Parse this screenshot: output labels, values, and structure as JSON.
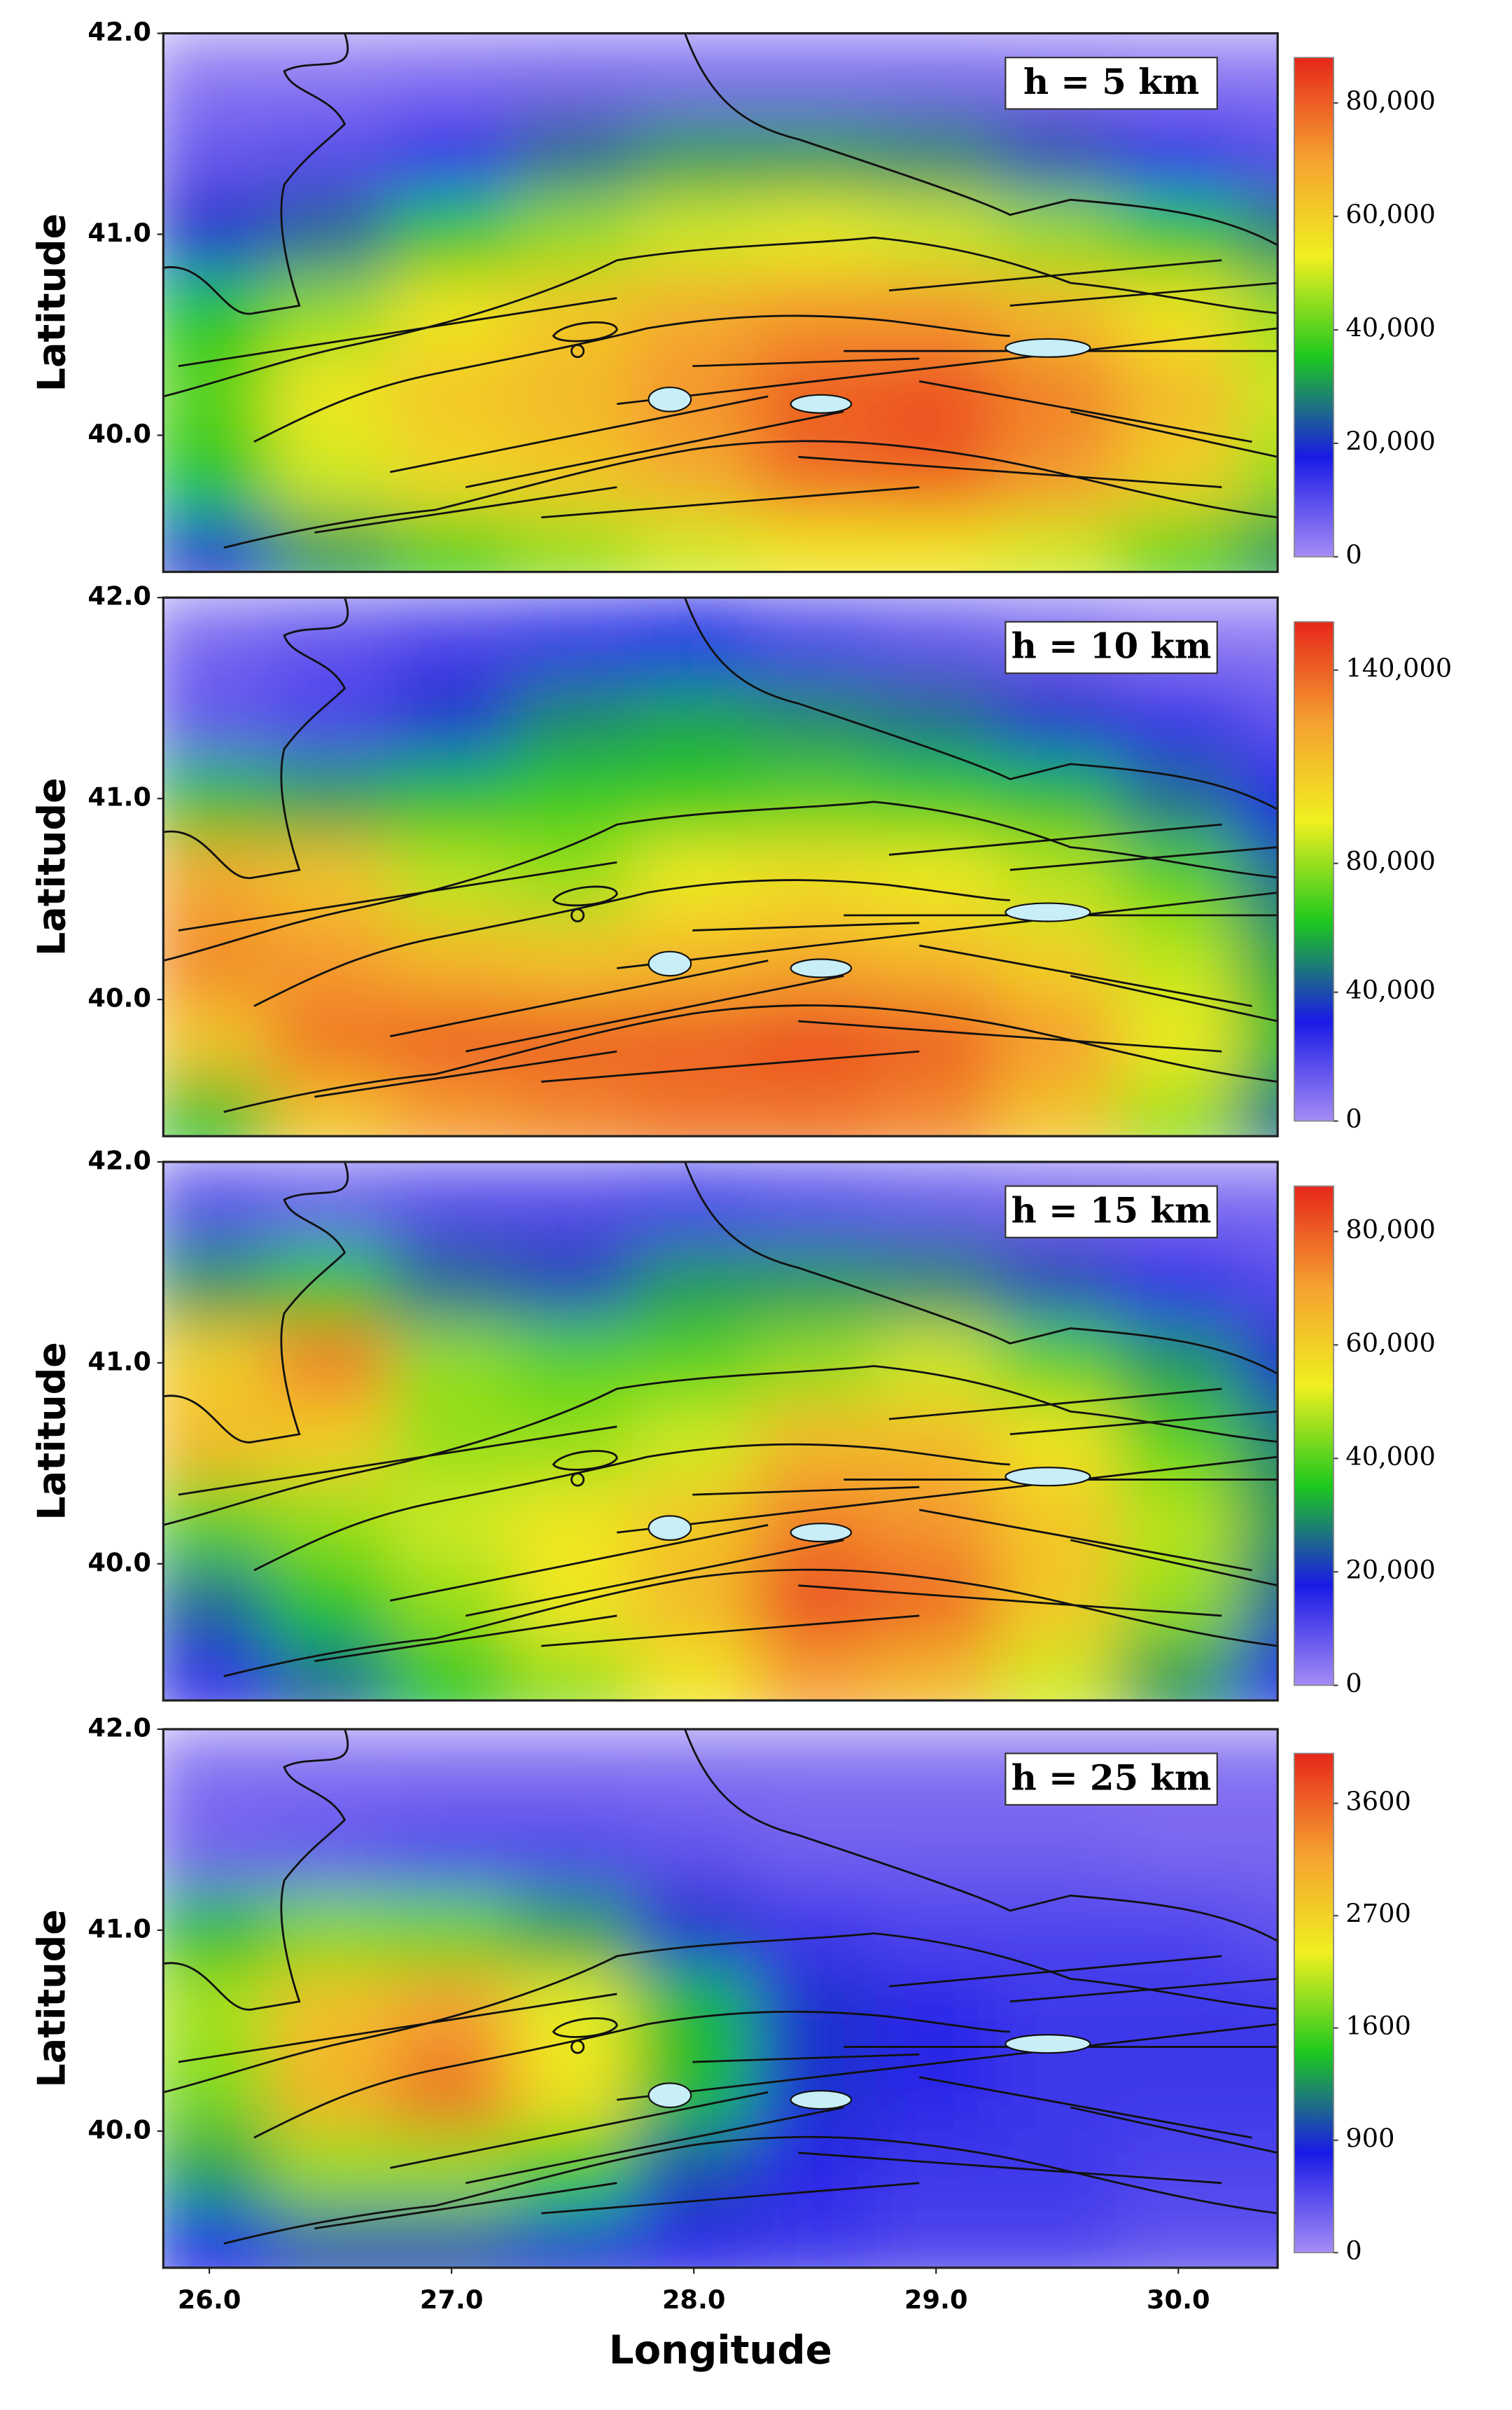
{
  "chart_data": [
    {
      "type": "heatmap",
      "title": "h = 5 km",
      "ylabel": "Latitude",
      "x": [
        26.0,
        26.5,
        27.0,
        27.5,
        28.0,
        28.5,
        29.0,
        29.5,
        30.0,
        30.5
      ],
      "y": [
        41.8,
        41.4,
        41.0,
        40.6,
        40.2,
        39.8,
        39.4
      ],
      "values": [
        [
          3000,
          3000,
          4000,
          5000,
          5000,
          5000,
          5000,
          4000,
          3000,
          3000
        ],
        [
          8000,
          10000,
          15000,
          25000,
          30000,
          30000,
          28000,
          22000,
          15000,
          10000
        ],
        [
          20000,
          25000,
          35000,
          45000,
          50000,
          52000,
          50000,
          45000,
          35000,
          28000
        ],
        [
          35000,
          45000,
          55000,
          62000,
          68000,
          72000,
          72000,
          65000,
          55000,
          45000
        ],
        [
          40000,
          55000,
          62000,
          65000,
          72000,
          80000,
          82000,
          75000,
          65000,
          50000
        ],
        [
          35000,
          50000,
          58000,
          62000,
          68000,
          78000,
          80000,
          72000,
          60000,
          45000
        ],
        [
          20000,
          30000,
          38000,
          45000,
          50000,
          55000,
          55000,
          50000,
          40000,
          30000
        ]
      ],
      "xlim": [
        25.81,
        30.41
      ],
      "ylim": [
        39.32,
        42.0
      ],
      "yticks": [
        {
          "value": 40,
          "label": "40.0"
        },
        {
          "value": 41,
          "label": "41.0"
        },
        {
          "value": 42,
          "label": "42.0"
        }
      ],
      "colormap": [
        "#a58cf5",
        "#1a1ae6",
        "#1ec81e",
        "#f0f020",
        "#f5a030",
        "#e6261a"
      ],
      "clim": [
        0,
        88000
      ],
      "colorbar_scale": "linear",
      "cticks": [
        0,
        {
          "value": 20000,
          "label": "20,000"
        },
        {
          "value": 40000,
          "label": "40,000"
        },
        {
          "value": 60000,
          "label": "60,000"
        },
        {
          "value": 80000,
          "label": "80,000"
        }
      ]
    },
    {
      "type": "heatmap",
      "title": "h = 10 km",
      "ylabel": "Latitude",
      "x": [
        26.0,
        26.5,
        27.0,
        27.5,
        28.0,
        28.5,
        29.0,
        29.5,
        30.0,
        30.5
      ],
      "y": [
        41.8,
        41.4,
        41.0,
        40.6,
        40.2,
        39.8,
        39.4
      ],
      "values": [
        [
          10000,
          15000,
          20000,
          25000,
          30000,
          20000,
          15000,
          10000,
          5000,
          5000
        ],
        [
          15000,
          20000,
          35000,
          50000,
          55000,
          50000,
          45000,
          35000,
          25000,
          15000
        ],
        [
          60000,
          55000,
          60000,
          65000,
          65000,
          70000,
          65000,
          60000,
          45000,
          30000
        ],
        [
          120000,
          110000,
          85000,
          80000,
          95000,
          100000,
          95000,
          85000,
          70000,
          45000
        ],
        [
          130000,
          125000,
          115000,
          110000,
          115000,
          120000,
          115000,
          105000,
          85000,
          55000
        ],
        [
          110000,
          135000,
          140000,
          140000,
          140000,
          145000,
          140000,
          125000,
          95000,
          60000
        ],
        [
          60000,
          110000,
          125000,
          130000,
          135000,
          135000,
          130000,
          110000,
          80000,
          45000
        ]
      ],
      "xlim": [
        25.81,
        30.41
      ],
      "ylim": [
        39.32,
        42.0
      ],
      "yticks": [
        {
          "value": 40,
          "label": "40.0"
        },
        {
          "value": 41,
          "label": "41.0"
        },
        {
          "value": 42,
          "label": "42.0"
        }
      ],
      "colormap": [
        "#a58cf5",
        "#1a1ae6",
        "#1ec81e",
        "#f0f020",
        "#f5a030",
        "#e6261a"
      ],
      "clim": [
        0,
        155000
      ],
      "colorbar_scale": "linear",
      "cticks": [
        0,
        {
          "value": 40000,
          "label": "40,000"
        },
        {
          "value": 80000,
          "label": "80,000"
        },
        {
          "value": 140000,
          "label": "140,000"
        }
      ]
    },
    {
      "type": "heatmap",
      "title": "h = 15 km",
      "ylabel": "Latitude",
      "x": [
        26.0,
        26.5,
        27.0,
        27.5,
        28.0,
        28.5,
        29.0,
        29.5,
        30.0,
        30.5
      ],
      "y": [
        41.8,
        41.4,
        41.0,
        40.6,
        40.2,
        39.8,
        39.4
      ],
      "values": [
        [
          10000,
          8000,
          10000,
          10000,
          12000,
          10000,
          8000,
          6000,
          5000,
          5000
        ],
        [
          30000,
          35000,
          25000,
          22000,
          30000,
          30000,
          28000,
          22000,
          15000,
          10000
        ],
        [
          60000,
          75000,
          45000,
          40000,
          40000,
          45000,
          50000,
          40000,
          30000,
          20000
        ],
        [
          65000,
          60000,
          45000,
          45000,
          50000,
          65000,
          65000,
          55000,
          40000,
          28000
        ],
        [
          40000,
          45000,
          50000,
          55000,
          62000,
          75000,
          72000,
          62000,
          48000,
          30000
        ],
        [
          25000,
          35000,
          45000,
          55000,
          65000,
          82000,
          78000,
          62000,
          45000,
          25000
        ],
        [
          15000,
          25000,
          35000,
          45000,
          55000,
          70000,
          65000,
          50000,
          30000,
          15000
        ]
      ],
      "xlim": [
        25.81,
        30.41
      ],
      "ylim": [
        39.32,
        42.0
      ],
      "yticks": [
        {
          "value": 40,
          "label": "40.0"
        },
        {
          "value": 41,
          "label": "41.0"
        },
        {
          "value": 42,
          "label": "42.0"
        }
      ],
      "colormap": [
        "#a58cf5",
        "#1a1ae6",
        "#1ec81e",
        "#f0f020",
        "#f5a030",
        "#e6261a"
      ],
      "clim": [
        0,
        88000
      ],
      "colorbar_scale": "linear",
      "cticks": [
        0,
        {
          "value": 20000,
          "label": "20,000"
        },
        {
          "value": 40000,
          "label": "40,000"
        },
        {
          "value": 60000,
          "label": "60,000"
        },
        {
          "value": 80000,
          "label": "80,000"
        }
      ]
    },
    {
      "type": "heatmap",
      "title": "h = 25 km",
      "ylabel": "Latitude",
      "xlabel": "Longitude",
      "x": [
        26.0,
        26.5,
        27.0,
        27.5,
        28.0,
        28.5,
        29.0,
        29.5,
        30.0,
        30.5
      ],
      "y": [
        41.8,
        41.4,
        41.0,
        40.6,
        40.2,
        39.8,
        39.4
      ],
      "values": [
        [
          200,
          200,
          200,
          200,
          200,
          200,
          200,
          200,
          200,
          200
        ],
        [
          300,
          400,
          500,
          500,
          400,
          300,
          300,
          300,
          250,
          250
        ],
        [
          1400,
          1800,
          1700,
          1300,
          900,
          600,
          500,
          500,
          500,
          400
        ],
        [
          2000,
          2900,
          3200,
          2300,
          1400,
          900,
          700,
          600,
          600,
          600
        ],
        [
          1800,
          3000,
          3500,
          2500,
          1400,
          900,
          700,
          600,
          600,
          600
        ],
        [
          1300,
          1900,
          1900,
          1500,
          1000,
          700,
          600,
          600,
          500,
          500
        ],
        [
          800,
          1000,
          1000,
          900,
          700,
          600,
          500,
          500,
          400,
          400
        ]
      ],
      "xlim": [
        25.81,
        30.41
      ],
      "ylim": [
        39.32,
        42.0
      ],
      "xticks": [
        {
          "value": 26,
          "label": "26.0"
        },
        {
          "value": 27,
          "label": "27.0"
        },
        {
          "value": 28,
          "label": "28.0"
        },
        {
          "value": 29,
          "label": "29.0"
        },
        {
          "value": 30,
          "label": "30.0"
        }
      ],
      "yticks": [
        {
          "value": 40,
          "label": "40.0"
        },
        {
          "value": 41,
          "label": "41.0"
        },
        {
          "value": 42,
          "label": "42.0"
        }
      ],
      "colormap": [
        "#a58cf5",
        "#1a1ae6",
        "#1ec81e",
        "#f0f020",
        "#f5a030",
        "#e6261a"
      ],
      "clim": [
        0,
        4000
      ],
      "colorbar_scale": "tick-index",
      "cticks": [
        0,
        900,
        1600,
        2700,
        3600
      ]
    }
  ]
}
